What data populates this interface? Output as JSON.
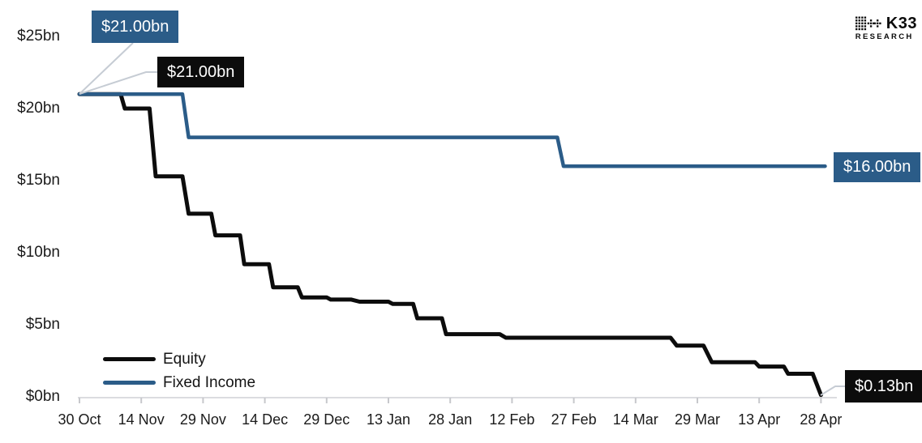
{
  "branding": {
    "logo_text": "K33",
    "logo_sub": "RESEARCH"
  },
  "colors": {
    "equity": "#0c0c0c",
    "fixed_income": "#2b5c88",
    "label_blue_bg": "#2b5c88",
    "label_black_bg": "#0c0c0c",
    "leader_line": "#c6ccd4",
    "axis_line": "#dbdce0",
    "tick_mark": "#c7c8cc",
    "text": "#1b1b1b",
    "background": "#ffffff"
  },
  "chart_data": {
    "type": "line",
    "title": "",
    "xlabel": "",
    "ylabel": "",
    "x_unit": "days since 30 Oct",
    "xlim": [
      0,
      181
    ],
    "ylim": [
      0,
      25
    ],
    "grid": false,
    "legend_position": "bottom-left",
    "y_ticks": [
      "$0bn",
      "$5bn",
      "$10bn",
      "$15bn",
      "$20bn",
      "$25bn"
    ],
    "x_ticks": [
      "30 Oct",
      "14 Nov",
      "29 Nov",
      "14 Dec",
      "29 Dec",
      "13 Jan",
      "28 Jan",
      "12 Feb",
      "27 Feb",
      "14 Mar",
      "29 Mar",
      "13 Apr",
      "28 Apr"
    ],
    "series": [
      {
        "name": "Equity",
        "color": "#0c0c0c",
        "points": [
          [
            0,
            21
          ],
          [
            10,
            21
          ],
          [
            11,
            20
          ],
          [
            17,
            20
          ],
          [
            18.5,
            15.3
          ],
          [
            25,
            15.3
          ],
          [
            26.5,
            12.7
          ],
          [
            32,
            12.7
          ],
          [
            33,
            11.2
          ],
          [
            39,
            11.2
          ],
          [
            40,
            9.2
          ],
          [
            46,
            9.2
          ],
          [
            47,
            7.6
          ],
          [
            53,
            7.6
          ],
          [
            54,
            6.9
          ],
          [
            60,
            6.9
          ],
          [
            61,
            6.75
          ],
          [
            66,
            6.75
          ],
          [
            68,
            6.6
          ],
          [
            75,
            6.6
          ],
          [
            76,
            6.45
          ],
          [
            81,
            6.45
          ],
          [
            82,
            5.45
          ],
          [
            88,
            5.45
          ],
          [
            89,
            4.35
          ],
          [
            102,
            4.35
          ],
          [
            103.5,
            4.1
          ],
          [
            143.5,
            4.1
          ],
          [
            145,
            3.55
          ],
          [
            151.5,
            3.55
          ],
          [
            153.5,
            2.4
          ],
          [
            164,
            2.4
          ],
          [
            165,
            2.1
          ],
          [
            171,
            2.1
          ],
          [
            172,
            1.6
          ],
          [
            178,
            1.6
          ],
          [
            180,
            0.13
          ]
        ]
      },
      {
        "name": "Fixed Income",
        "color": "#2b5c88",
        "points": [
          [
            0,
            21
          ],
          [
            25,
            21
          ],
          [
            26.5,
            18
          ],
          [
            116,
            18
          ],
          [
            117.5,
            16
          ],
          [
            181,
            16
          ]
        ]
      }
    ],
    "annotations": [
      {
        "text": "$21.00bn",
        "series": "Fixed Income",
        "position": "start",
        "style": "blue"
      },
      {
        "text": "$21.00bn",
        "series": "Equity",
        "position": "start",
        "style": "black"
      },
      {
        "text": "$16.00bn",
        "series": "Fixed Income",
        "position": "end",
        "style": "blue"
      },
      {
        "text": "$0.13bn",
        "series": "Equity",
        "position": "end",
        "style": "black"
      }
    ]
  }
}
